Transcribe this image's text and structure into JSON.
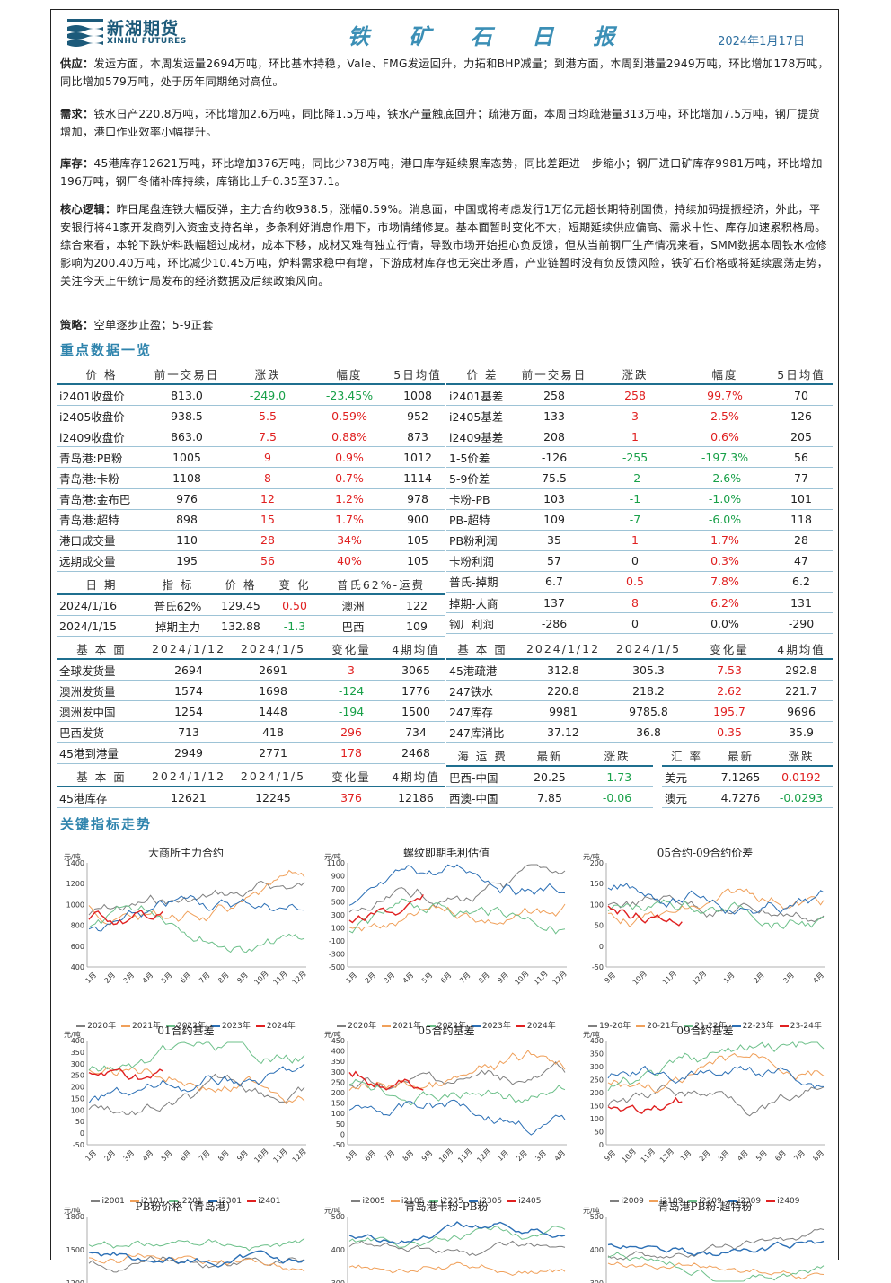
{
  "header": {
    "logo_cn": "新湖期货",
    "logo_en": "XINHU FUTURES",
    "title": "铁 矿 石 日 报",
    "date": "2024年1月17日"
  },
  "paragraphs": {
    "supply_label": "供应：",
    "supply_text": "发运方面，本周发运量2694万吨，环比基本持稳，Vale、FMG发运回升，力拓和BHP减量；到港方面，本周到港量2949万吨，环比增加178万吨，同比增加579万吨，处于历年同期绝对高位。",
    "demand_label": "需求：",
    "demand_text": "铁水日产220.8万吨，环比增加2.6万吨，同比降1.5万吨，铁水产量触底回升；疏港方面，本周日均疏港量313万吨，环比增加7.5万吨，钢厂提货增加，港口作业效率小幅提升。",
    "stock_label": "库存：",
    "stock_text": "45港库存12621万吨，环比增加376万吨，同比少738万吨，港口库存延续累库态势，同比差距进一步缩小；钢厂进口矿库存9981万吨，环比增加196万吨，钢厂冬储补库持续，库销比上升0.35至37.1。",
    "logic_label": "核心逻辑：",
    "logic_text": "昨日尾盘连铁大幅反弹，主力合约收938.5，涨幅0.59%。消息面，中国或将考虑发行1万亿元超长期特别国债，持续加码提振经济，外此，平安银行将41家开发商列入资金支持名单，多条利好消息作用下，市场情绪修复。基本面暂时变化不大，短期延续供应偏高、需求中性、库存加速累积格局。综合来看，本轮下跌炉料跌幅超过成材，成本下移，成材又难有独立行情，导致市场开始担心负反馈，但从当前钢厂生产情况来看，SMM数据本周铁水检修影响为200.40万吨，环比减少10.45万吨，炉料需求稳中有增，下游成材库存也无突出矛盾，产业链暂时没有负反馈风险，铁矿石价格或将延续震荡走势，关注今天上午统计局发布的经济数据及后续政策风向。",
    "strategy_label": "策略：",
    "strategy_text": "空单逐步止盈；5-9正套"
  },
  "section_titles": {
    "key_data": "重点数据一览",
    "trends": "关键指标走势"
  },
  "tables": {
    "price_header": [
      "价 格",
      "前一交易日",
      "涨跌",
      "幅度",
      "5日均值"
    ],
    "price_rows": [
      [
        "i2401收盘价",
        "813.0",
        "-249.0",
        "-23.45%",
        "1008"
      ],
      [
        "i2405收盘价",
        "938.5",
        "5.5",
        "0.59%",
        "952"
      ],
      [
        "i2409收盘价",
        "863.0",
        "7.5",
        "0.88%",
        "873"
      ],
      [
        "青岛港:PB粉",
        "1005",
        "9",
        "0.9%",
        "1012"
      ],
      [
        "青岛港:卡粉",
        "1108",
        "8",
        "0.7%",
        "1114"
      ],
      [
        "青岛港:金布巴",
        "976",
        "12",
        "1.2%",
        "978"
      ],
      [
        "青岛港:超特",
        "898",
        "15",
        "1.7%",
        "900"
      ],
      [
        "港口成交量",
        "110",
        "28",
        "34%",
        "105"
      ],
      [
        "远期成交量",
        "195",
        "56",
        "40%",
        "105"
      ]
    ],
    "spread_header": [
      "价 差",
      "前一交易日",
      "涨跌",
      "幅度",
      "5日均值"
    ],
    "spread_rows": [
      [
        "i2401基差",
        "258",
        "258",
        "99.7%",
        "70"
      ],
      [
        "i2405基差",
        "133",
        "3",
        "2.5%",
        "126"
      ],
      [
        "i2409基差",
        "208",
        "1",
        "0.6%",
        "205"
      ],
      [
        "1-5价差",
        "-126",
        "-255",
        "-197.3%",
        "56"
      ],
      [
        "5-9价差",
        "75.5",
        "-2",
        "-2.6%",
        "77"
      ],
      [
        "卡粉-PB",
        "103",
        "-1",
        "-1.0%",
        "101"
      ],
      [
        "PB-超特",
        "109",
        "-7",
        "-6.0%",
        "118"
      ],
      [
        "PB粉利润",
        "35",
        "1",
        "1.7%",
        "28"
      ],
      [
        "卡粉利润",
        "57",
        "0",
        "0.3%",
        "47"
      ],
      [
        "普氏-掉期",
        "6.7",
        "0.5",
        "7.8%",
        "6.2"
      ],
      [
        "掉期-大商",
        "137",
        "8",
        "6.2%",
        "131"
      ],
      [
        "钢厂利润",
        "-286",
        "0",
        "0.0%",
        "-290"
      ]
    ],
    "index_header": [
      "日 期",
      "指 标",
      "价 格",
      "变 化",
      "普氏62%-运费"
    ],
    "index_rows": [
      [
        "2024/1/16",
        "普氏62%",
        "129.45",
        "0.50",
        "澳洲",
        "122"
      ],
      [
        "2024/1/15",
        "掉期主力",
        "132.88",
        "-1.3",
        "巴西",
        "109"
      ]
    ],
    "fund_header_left": [
      "基 本 面",
      "2024/1/12",
      "2024/1/5",
      "变化量",
      "4期均值"
    ],
    "fund_rows_left": [
      [
        "全球发货量",
        "2694",
        "2691",
        "3",
        "3065"
      ],
      [
        "澳洲发货量",
        "1574",
        "1698",
        "-124",
        "1776"
      ],
      [
        "澳洲发中国",
        "1254",
        "1448",
        "-194",
        "1500"
      ],
      [
        "巴西发货",
        "713",
        "418",
        "296",
        "734"
      ],
      [
        "45港到港量",
        "2949",
        "2771",
        "178",
        "2468"
      ]
    ],
    "fund_header_right": [
      "基 本 面",
      "2024/1/12",
      "2024/1/5",
      "变化量",
      "4期均值"
    ],
    "fund_rows_right": [
      [
        "45港疏港",
        "312.8",
        "305.3",
        "7.53",
        "292.8"
      ],
      [
        "247铁水",
        "220.8",
        "218.2",
        "2.62",
        "221.7"
      ],
      [
        "247库存",
        "9981",
        "9785.8",
        "195.7",
        "9696"
      ],
      [
        "247库消比",
        "37.12",
        "36.8",
        "0.35",
        "35.9"
      ]
    ],
    "stock_header": [
      "基 本 面",
      "2024/1/12",
      "2024/1/5",
      "变化量",
      "4期均值"
    ],
    "stock_row": [
      "45港库存",
      "12621",
      "12245",
      "376",
      "12186"
    ],
    "freight_header": [
      "海 运 费",
      "最新",
      "涨跌"
    ],
    "freight_rows": [
      [
        "巴西-中国",
        "20.25",
        "-1.73"
      ],
      [
        "西澳-中国",
        "7.85",
        "-0.06"
      ]
    ],
    "fx_header": [
      "汇 率",
      "最新",
      "涨跌"
    ],
    "fx_rows": [
      [
        "美元",
        "7.1265",
        "0.0192"
      ],
      [
        "澳元",
        "4.7276",
        "-0.0293"
      ]
    ]
  },
  "colors": {
    "header_bg": "#1f6f8f",
    "up": "#e02020",
    "down": "#18a048",
    "accent": "#2f84ad"
  },
  "chart_data": [
    {
      "type": "line",
      "title": "大商所主力合约",
      "unit": "元/吨",
      "yticks": [
        "1400",
        "1200",
        "1000",
        "800",
        "600",
        "400"
      ],
      "xticks": [
        "1月",
        "2月",
        "3月",
        "4月",
        "5月",
        "6月",
        "7月",
        "8月",
        "9月",
        "10月",
        "11月",
        "12月"
      ],
      "series": [
        {
          "name": "2020年"
        },
        {
          "name": "2021年"
        },
        {
          "name": "2022年"
        },
        {
          "name": "2023年"
        },
        {
          "name": "2024年"
        }
      ]
    },
    {
      "type": "line",
      "title": "螺纹即期毛利估值",
      "unit": "元/吨",
      "yticks": [
        "1100",
        "900",
        "700",
        "500",
        "300",
        "100",
        "-100",
        "-300",
        "-500"
      ],
      "xticks": [
        "1月",
        "2月",
        "3月",
        "4月",
        "5月",
        "6月",
        "7月",
        "8月",
        "9月",
        "10月",
        "11月",
        "12月"
      ],
      "series": [
        {
          "name": "2020年"
        },
        {
          "name": "2021年"
        },
        {
          "name": "2022年"
        },
        {
          "name": "2023年"
        },
        {
          "name": "2024年"
        }
      ]
    },
    {
      "type": "line",
      "title": "05合约-09合约价差",
      "unit": "元/吨",
      "yticks": [
        "200",
        "150",
        "100",
        "50",
        "0",
        "-50"
      ],
      "xticks": [
        "9月",
        "10月",
        "11月",
        "12月",
        "1月",
        "2月",
        "3月",
        "4月"
      ],
      "series": [
        {
          "name": "19-20年"
        },
        {
          "name": "20-21年"
        },
        {
          "name": "21-22年"
        },
        {
          "name": "22-23年"
        },
        {
          "name": "23-24年"
        }
      ]
    },
    {
      "type": "line",
      "title": "01合约基差",
      "unit": "元/吨",
      "yticks": [
        "400",
        "350",
        "300",
        "250",
        "200",
        "150",
        "100",
        "50",
        "0",
        "-50"
      ],
      "xticks": [
        "1月",
        "2月",
        "3月",
        "4月",
        "5月",
        "6月",
        "7月",
        "8月",
        "9月",
        "10月",
        "11月",
        "12月"
      ],
      "series": [
        {
          "name": "i2001"
        },
        {
          "name": "i2101"
        },
        {
          "name": "i2201"
        },
        {
          "name": "i2301"
        },
        {
          "name": "i2401"
        }
      ]
    },
    {
      "type": "line",
      "title": "05合约基差",
      "unit": "元/吨",
      "yticks": [
        "450",
        "400",
        "350",
        "300",
        "250",
        "200",
        "150",
        "100",
        "50",
        "0",
        "-50"
      ],
      "xticks": [
        "5月",
        "6月",
        "7月",
        "8月",
        "9月",
        "10月",
        "11月",
        "12月",
        "1月",
        "2月",
        "3月",
        "4月"
      ],
      "series": [
        {
          "name": "i2005"
        },
        {
          "name": "i2105"
        },
        {
          "name": "i2205"
        },
        {
          "name": "i2305"
        },
        {
          "name": "i2405"
        }
      ]
    },
    {
      "type": "line",
      "title": "09合约基差",
      "unit": "元/吨",
      "yticks": [
        "400",
        "350",
        "300",
        "250",
        "200",
        "150",
        "100",
        "50",
        "0"
      ],
      "xticks": [
        "9月",
        "10月",
        "11月",
        "12月",
        "1月",
        "2月",
        "3月",
        "4月",
        "5月",
        "6月",
        "7月",
        "8月"
      ],
      "series": [
        {
          "name": "i2009"
        },
        {
          "name": "i2109"
        },
        {
          "name": "i2209"
        },
        {
          "name": "i2309"
        },
        {
          "name": "i2409"
        }
      ]
    },
    {
      "type": "line",
      "title": "PB粉价格（青岛港）",
      "unit": "元/吨",
      "yticks": [
        "1800",
        "1500",
        "1200"
      ],
      "xticks": [],
      "series": []
    },
    {
      "type": "line",
      "title": "青岛港卡粉-PB粉",
      "unit": "元/吨",
      "yticks": [
        "500",
        "400",
        "300"
      ],
      "xticks": [],
      "series": []
    },
    {
      "type": "line",
      "title": "青岛港PB粉-超特粉",
      "unit": "元/吨",
      "yticks": [
        "500",
        "400",
        "300"
      ],
      "xticks": [],
      "series": []
    }
  ]
}
